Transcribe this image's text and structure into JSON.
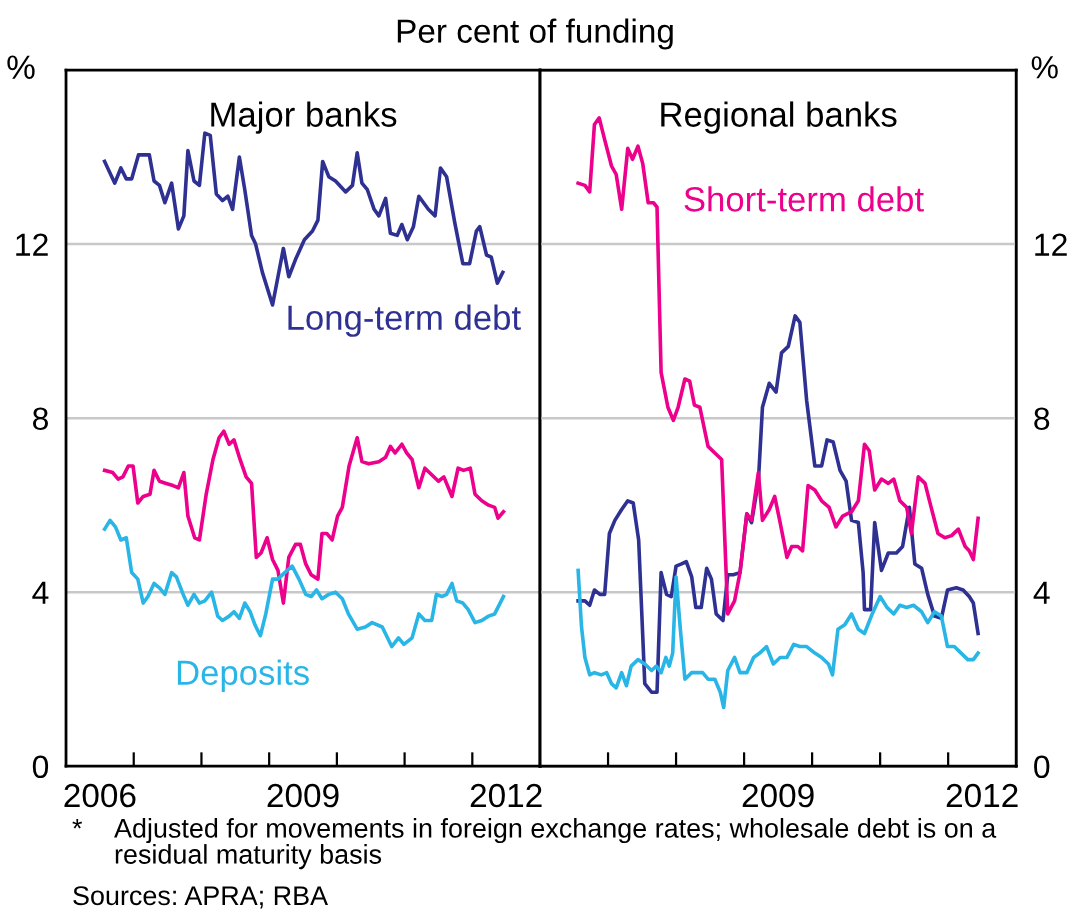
{
  "chart_data": [
    {
      "type": "line",
      "title": "Major banks",
      "subtitle": "Per cent of funding",
      "ylabel": "%",
      "annotations": [
        "*\tAdjusted for movements in foreign exchange rates; wholesale debt is on a residual maturity basis",
        "Sources: APRA; RBA"
      ],
      "xlim": [
        2006,
        2013
      ],
      "xticks": [
        {
          "value": 2007,
          "label": null
        },
        {
          "value": 2008,
          "label": null
        },
        {
          "value": 2009,
          "label": null
        },
        {
          "value": 2010,
          "label": null
        },
        {
          "value": 2011,
          "label": null
        },
        {
          "value": 2012,
          "label": null
        },
        {
          "value": 2006.5,
          "label": "2006"
        },
        {
          "value": 2009.5,
          "label": "2009"
        },
        {
          "value": 2012.5,
          "label": "2012"
        }
      ],
      "ylim": [
        0,
        16
      ],
      "yticks": [
        0,
        4,
        8,
        12
      ],
      "grid": "y",
      "legend": false,
      "marker": "none",
      "line_style": "solid",
      "series": [
        {
          "name": "Long-term debt",
          "color": "#2e3192",
          "x": [
            2006.57,
            2006.72,
            2006.81,
            2006.89,
            2006.97,
            2007.07,
            2007.23,
            2007.3,
            2007.38,
            2007.46,
            2007.56,
            2007.66,
            2007.74,
            2007.8,
            2007.89,
            2007.97,
            2008.05,
            2008.13,
            2008.22,
            2008.31,
            2008.39,
            2008.46,
            2008.56,
            2008.64,
            2008.74,
            2008.8,
            2008.9,
            2009.05,
            2009.13,
            2009.21,
            2009.29,
            2009.39,
            2009.52,
            2009.64,
            2009.72,
            2009.79,
            2009.88,
            2009.98,
            2010.13,
            2010.23,
            2010.3,
            2010.37,
            2010.45,
            2010.55,
            2010.62,
            2010.72,
            2010.79,
            2010.89,
            2010.96,
            2011.04,
            2011.13,
            2011.21,
            2011.35,
            2011.45,
            2011.53,
            2011.62,
            2011.74,
            2011.86,
            2011.96,
            2012.06,
            2012.11,
            2012.21,
            2012.28,
            2012.37,
            2012.45
          ],
          "values": [
            13.9,
            13.4,
            13.75,
            13.5,
            13.5,
            14.05,
            14.05,
            13.45,
            13.35,
            12.95,
            13.4,
            12.35,
            12.65,
            14.15,
            13.45,
            13.35,
            14.55,
            14.5,
            13.15,
            13.0,
            13.1,
            12.8,
            14.0,
            13.25,
            12.2,
            12.0,
            11.35,
            10.6,
            11.25,
            11.9,
            11.25,
            11.65,
            12.1,
            12.3,
            12.55,
            13.9,
            13.55,
            13.45,
            13.2,
            13.35,
            14.1,
            13.4,
            13.25,
            12.8,
            12.65,
            13.05,
            12.25,
            12.2,
            12.45,
            12.1,
            12.4,
            13.1,
            12.8,
            12.65,
            13.75,
            13.55,
            12.5,
            11.55,
            11.55,
            12.3,
            12.4,
            11.75,
            11.7,
            11.1,
            11.35
          ]
        },
        {
          "color": "#ec008c",
          "x": [
            2006.57,
            2006.69,
            2006.77,
            2006.84,
            2006.92,
            2006.99,
            2007.06,
            2007.14,
            2007.24,
            2007.3,
            2007.38,
            2007.48,
            2007.58,
            2007.66,
            2007.74,
            2007.8,
            2007.9,
            2007.97,
            2008.07,
            2008.17,
            2008.26,
            2008.33,
            2008.41,
            2008.48,
            2008.56,
            2008.66,
            2008.74,
            2008.81,
            2008.88,
            2008.97,
            2009.05,
            2009.13,
            2009.21,
            2009.29,
            2009.39,
            2009.46,
            2009.54,
            2009.62,
            2009.72,
            2009.78,
            2009.85,
            2009.93,
            2010.01,
            2010.08,
            2010.18,
            2010.3,
            2010.37,
            2010.47,
            2010.62,
            2010.72,
            2010.79,
            2010.86,
            2010.96,
            2011.03,
            2011.11,
            2011.21,
            2011.3,
            2011.4,
            2011.5,
            2011.58,
            2011.7,
            2011.79,
            2011.87,
            2011.97,
            2012.04,
            2012.14,
            2012.24,
            2012.33,
            2012.38,
            2012.46
          ],
          "values": [
            6.8,
            6.75,
            6.6,
            6.65,
            6.9,
            6.9,
            6.05,
            6.2,
            6.25,
            6.8,
            6.55,
            6.5,
            6.45,
            6.4,
            6.75,
            5.75,
            5.25,
            5.2,
            6.25,
            7.05,
            7.55,
            7.7,
            7.4,
            7.5,
            7.1,
            6.65,
            6.5,
            4.8,
            4.9,
            5.25,
            4.75,
            4.5,
            3.75,
            4.8,
            5.1,
            5.1,
            4.65,
            4.4,
            4.3,
            5.35,
            5.35,
            5.2,
            5.75,
            5.95,
            6.9,
            7.55,
            7.0,
            6.95,
            7.0,
            7.1,
            7.35,
            7.2,
            7.4,
            7.2,
            7.05,
            6.4,
            6.85,
            6.7,
            6.55,
            6.65,
            6.2,
            6.85,
            6.8,
            6.85,
            6.25,
            6.1,
            6.0,
            5.95,
            5.7,
            5.85
          ]
        },
        {
          "name": "Deposits",
          "color": "#29b6e6",
          "x": [
            2006.57,
            2006.65,
            2006.73,
            2006.81,
            2006.89,
            2006.97,
            2007.06,
            2007.14,
            2007.21,
            2007.3,
            2007.38,
            2007.46,
            2007.56,
            2007.63,
            2007.73,
            2007.8,
            2007.89,
            2007.97,
            2008.05,
            2008.15,
            2008.24,
            2008.31,
            2008.41,
            2008.48,
            2008.56,
            2008.64,
            2008.72,
            2008.79,
            2008.87,
            2008.95,
            2009.05,
            2009.13,
            2009.23,
            2009.34,
            2009.44,
            2009.54,
            2009.62,
            2009.7,
            2009.78,
            2009.88,
            2009.98,
            2010.08,
            2010.17,
            2010.3,
            2010.42,
            2010.52,
            2010.67,
            2010.81,
            2010.91,
            2010.99,
            2011.11,
            2011.21,
            2011.3,
            2011.4,
            2011.47,
            2011.55,
            2011.62,
            2011.7,
            2011.77,
            2011.86,
            2011.94,
            2012.04,
            2012.14,
            2012.24,
            2012.33,
            2012.46
          ],
          "values": [
            5.45,
            5.65,
            5.5,
            5.2,
            5.25,
            4.45,
            4.3,
            3.75,
            3.9,
            4.2,
            4.1,
            3.95,
            4.45,
            4.35,
            3.95,
            3.7,
            3.95,
            3.75,
            3.8,
            4.0,
            3.45,
            3.35,
            3.45,
            3.55,
            3.4,
            3.75,
            3.55,
            3.25,
            3.0,
            3.5,
            4.3,
            4.3,
            4.45,
            4.6,
            4.3,
            3.95,
            3.9,
            4.05,
            3.85,
            3.95,
            4.0,
            3.85,
            3.5,
            3.15,
            3.2,
            3.3,
            3.2,
            2.75,
            2.95,
            2.8,
            2.95,
            3.5,
            3.35,
            3.35,
            3.95,
            3.9,
            3.95,
            4.2,
            3.8,
            3.75,
            3.6,
            3.3,
            3.35,
            3.45,
            3.5,
            3.9
          ]
        }
      ]
    },
    {
      "type": "line",
      "title": "Regional banks",
      "y2label": "%",
      "xlim": [
        2006,
        2013
      ],
      "xticks": [
        {
          "value": 2007,
          "label": null
        },
        {
          "value": 2008,
          "label": null
        },
        {
          "value": 2009,
          "label": null
        },
        {
          "value": 2010,
          "label": null
        },
        {
          "value": 2011,
          "label": null
        },
        {
          "value": 2012,
          "label": null
        },
        {
          "value": 2009.5,
          "label": "2009"
        },
        {
          "value": 2012.5,
          "label": "2012"
        }
      ],
      "y2lim": [
        0,
        16
      ],
      "y2ticks": [
        0,
        4,
        8,
        12
      ],
      "grid": "y",
      "legend": false,
      "marker": "none",
      "line_style": "solid",
      "series": [
        {
          "color": "#2e3192",
          "axis": "y2",
          "x": [
            2006.56,
            2006.66,
            2006.73,
            2006.8,
            2006.88,
            2006.95,
            2007.02,
            2007.1,
            2007.2,
            2007.29,
            2007.37,
            2007.45,
            2007.54,
            2007.64,
            2007.72,
            2007.78,
            2007.86,
            2007.93,
            2008.0,
            2008.08,
            2008.15,
            2008.23,
            2008.29,
            2008.37,
            2008.45,
            2008.52,
            2008.59,
            2008.69,
            2008.76,
            2008.84,
            2008.94,
            2009.04,
            2009.11,
            2009.21,
            2009.27,
            2009.37,
            2009.47,
            2009.55,
            2009.65,
            2009.75,
            2009.82,
            2009.92,
            2010.04,
            2010.14,
            2010.22,
            2010.31,
            2010.41,
            2010.5,
            2010.58,
            2010.68,
            2010.75,
            2010.77,
            2010.86,
            2010.92,
            2011.02,
            2011.12,
            2011.24,
            2011.33,
            2011.43,
            2011.51,
            2011.61,
            2011.7,
            2011.8,
            2011.9,
            2011.99,
            2012.12,
            2012.22,
            2012.31,
            2012.37,
            2012.44
          ],
          "values": [
            3.8,
            3.8,
            3.7,
            4.05,
            3.95,
            3.95,
            5.35,
            5.65,
            5.9,
            6.1,
            6.05,
            5.2,
            1.9,
            1.7,
            1.7,
            4.45,
            3.95,
            3.9,
            4.6,
            4.65,
            4.7,
            4.35,
            3.65,
            3.65,
            4.55,
            4.3,
            3.5,
            3.35,
            4.4,
            4.4,
            4.45,
            5.8,
            5.6,
            6.55,
            8.25,
            8.8,
            8.6,
            9.5,
            9.65,
            10.35,
            10.2,
            8.4,
            6.9,
            6.9,
            7.5,
            7.45,
            6.8,
            6.55,
            5.65,
            5.6,
            4.45,
            3.6,
            3.6,
            5.6,
            4.5,
            4.9,
            4.9,
            5.05,
            5.95,
            4.65,
            4.55,
            3.95,
            3.45,
            3.4,
            4.05,
            4.1,
            4.05,
            3.9,
            3.75,
            3.05
          ]
        },
        {
          "name": "Short-term debt",
          "color": "#ec008c",
          "axis": "y2",
          "x": [
            2006.56,
            2006.66,
            2006.73,
            2006.8,
            2006.87,
            2006.95,
            2007.05,
            2007.12,
            2007.2,
            2007.29,
            2007.36,
            2007.44,
            2007.51,
            2007.59,
            2007.67,
            2007.72,
            2007.78,
            2007.88,
            2007.96,
            2008.03,
            2008.13,
            2008.2,
            2008.27,
            2008.35,
            2008.47,
            2008.57,
            2008.67,
            2008.76,
            2008.86,
            2008.94,
            2009.04,
            2009.11,
            2009.21,
            2009.27,
            2009.37,
            2009.45,
            2009.53,
            2009.63,
            2009.7,
            2009.79,
            2009.86,
            2009.94,
            2010.04,
            2010.14,
            2010.25,
            2010.35,
            2010.45,
            2010.58,
            2010.68,
            2010.77,
            2010.84,
            2010.92,
            2011.02,
            2011.12,
            2011.2,
            2011.29,
            2011.39,
            2011.46,
            2011.56,
            2011.66,
            2011.75,
            2011.85,
            2011.95,
            2012.05,
            2012.15,
            2012.25,
            2012.31,
            2012.37,
            2012.44
          ],
          "values": [
            13.4,
            13.35,
            13.2,
            14.75,
            14.9,
            14.4,
            13.8,
            13.6,
            12.8,
            14.2,
            13.95,
            14.25,
            13.85,
            12.95,
            12.95,
            12.85,
            9.05,
            8.25,
            7.95,
            8.25,
            8.9,
            8.85,
            8.3,
            8.25,
            7.35,
            7.2,
            7.05,
            3.5,
            3.8,
            4.45,
            5.8,
            5.65,
            6.75,
            5.65,
            5.9,
            6.2,
            5.6,
            4.8,
            5.05,
            5.05,
            4.95,
            6.45,
            6.35,
            6.1,
            5.95,
            5.5,
            5.75,
            5.85,
            6.1,
            7.4,
            7.25,
            6.35,
            6.6,
            6.5,
            6.6,
            6.1,
            5.95,
            5.35,
            6.65,
            6.5,
            5.95,
            5.35,
            5.25,
            5.3,
            5.45,
            5.05,
            4.95,
            4.75,
            5.7
          ]
        },
        {
          "color": "#29b6e6",
          "axis": "y2",
          "x": [
            2006.56,
            2006.61,
            2006.66,
            2006.73,
            2006.8,
            2006.9,
            2006.98,
            2007.05,
            2007.12,
            2007.2,
            2007.27,
            2007.34,
            2007.44,
            2007.54,
            2007.64,
            2007.71,
            2007.78,
            2007.85,
            2007.9,
            2007.95,
            2008.0,
            2008.06,
            2008.13,
            2008.23,
            2008.32,
            2008.39,
            2008.47,
            2008.57,
            2008.65,
            2008.7,
            2008.76,
            2008.86,
            2008.94,
            2009.04,
            2009.14,
            2009.23,
            2009.33,
            2009.43,
            2009.53,
            2009.63,
            2009.73,
            2009.82,
            2009.92,
            2010.04,
            2010.14,
            2010.24,
            2010.3,
            2010.38,
            2010.48,
            2010.58,
            2010.68,
            2010.77,
            2010.87,
            2011.0,
            2011.1,
            2011.2,
            2011.29,
            2011.39,
            2011.49,
            2011.61,
            2011.7,
            2011.8,
            2011.9,
            2011.99,
            2012.09,
            2012.19,
            2012.29,
            2012.37,
            2012.44
          ],
          "values": [
            4.5,
            3.2,
            2.5,
            2.1,
            2.15,
            2.1,
            2.15,
            1.9,
            1.8,
            2.15,
            1.85,
            2.3,
            2.45,
            2.35,
            2.2,
            2.3,
            2.15,
            2.5,
            2.3,
            2.6,
            4.35,
            3.2,
            2.0,
            2.15,
            2.15,
            2.15,
            2.0,
            2.0,
            1.7,
            1.35,
            2.2,
            2.5,
            2.15,
            2.15,
            2.5,
            2.6,
            2.75,
            2.35,
            2.5,
            2.5,
            2.8,
            2.75,
            2.75,
            2.6,
            2.5,
            2.35,
            2.1,
            3.15,
            3.25,
            3.5,
            3.15,
            3.05,
            3.45,
            3.9,
            3.65,
            3.5,
            3.7,
            3.65,
            3.7,
            3.55,
            3.3,
            3.55,
            3.45,
            2.75,
            2.75,
            2.6,
            2.45,
            2.45,
            2.6
          ]
        }
      ]
    }
  ]
}
